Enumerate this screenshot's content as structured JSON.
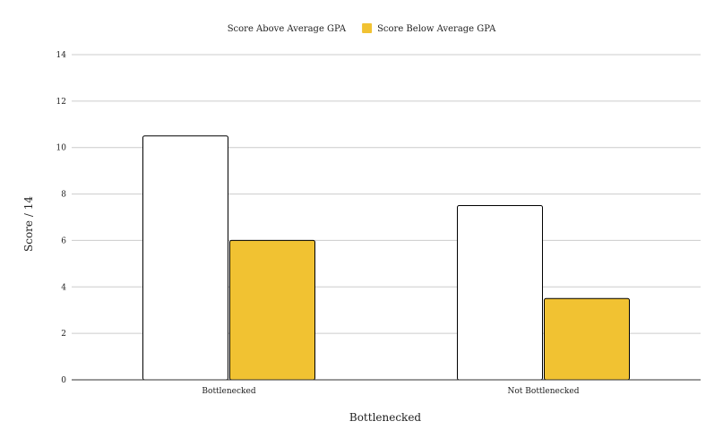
{
  "chart_data": {
    "type": "bar",
    "title": "",
    "xlabel": "Bottlenecked",
    "ylabel": "Score / 14",
    "categories": [
      "Bottlenecked",
      "Not Bottlenecked"
    ],
    "series": [
      {
        "name": "Score Above Average GPA",
        "values": [
          10.5,
          7.5
        ],
        "color": "#ffffff",
        "stroke": "#000000"
      },
      {
        "name": "Score Below Average GPA",
        "values": [
          6.0,
          3.5
        ],
        "color": "#f1c232",
        "stroke": "#000000"
      }
    ],
    "ylim": [
      0,
      14
    ],
    "yticks": [
      "0",
      "2",
      "4",
      "6",
      "8",
      "10",
      "12",
      "14"
    ],
    "grid": true,
    "legend_position": "top-center",
    "gridline_color": "#cccccc",
    "axis_color": "#333333"
  }
}
